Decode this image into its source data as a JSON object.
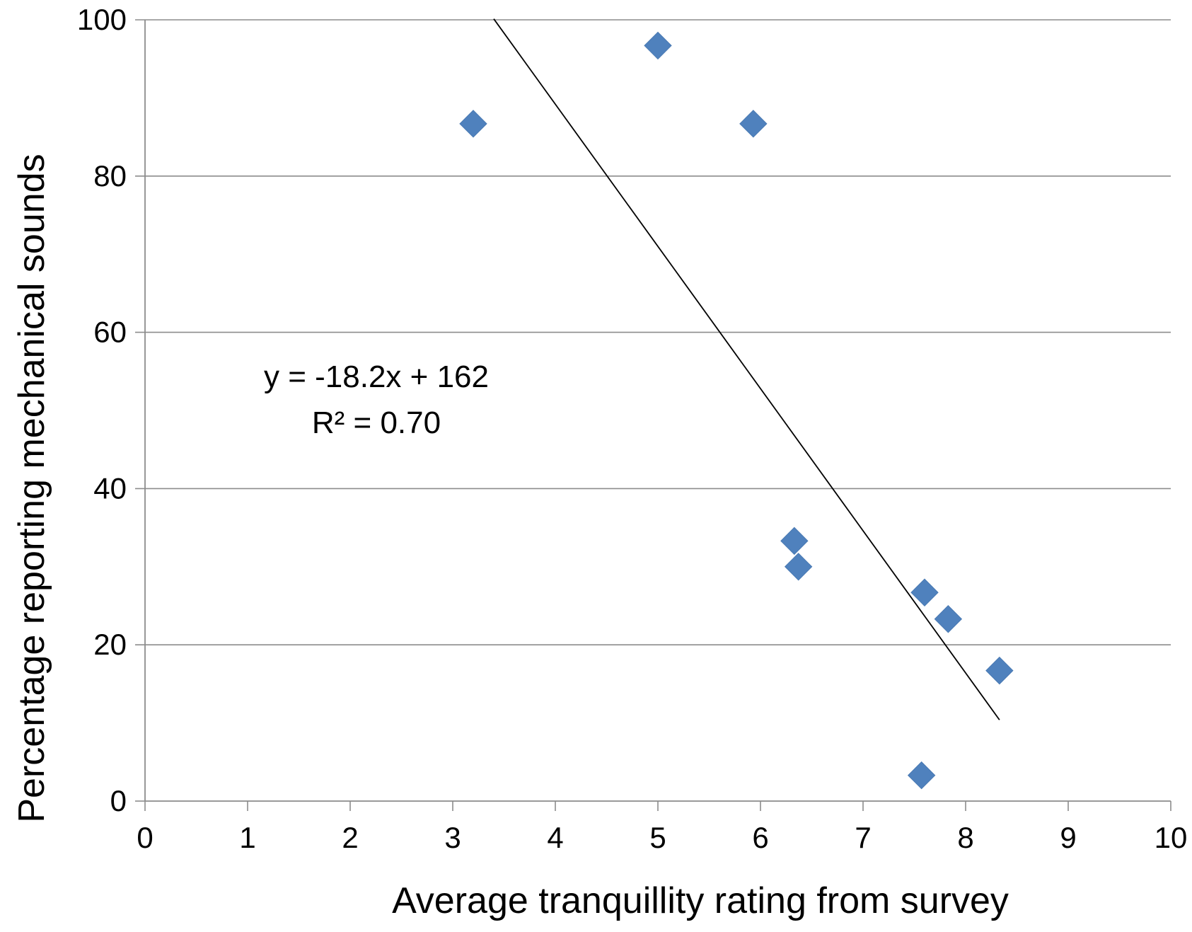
{
  "chart_data": {
    "type": "scatter",
    "title": "",
    "xlabel": "Average tranquillity rating from survey",
    "ylabel": "Percentage reporting  mechanical sounds",
    "xlim": [
      0,
      10
    ],
    "ylim": [
      0,
      100
    ],
    "xticks": [
      "0",
      "1",
      "2",
      "3",
      "4",
      "5",
      "6",
      "7",
      "8",
      "9",
      "10"
    ],
    "yticks": [
      "0",
      "20",
      "40",
      "60",
      "80",
      "100"
    ],
    "grid": "horizontal",
    "legend": "none",
    "marker": "diamond",
    "marker_color": "#4f81bd",
    "series": [
      {
        "points": [
          {
            "x": 3.2,
            "y": 86.7
          },
          {
            "x": 5.0,
            "y": 96.7
          },
          {
            "x": 5.93,
            "y": 86.7
          },
          {
            "x": 6.33,
            "y": 33.3
          },
          {
            "x": 6.37,
            "y": 30.0
          },
          {
            "x": 7.6,
            "y": 26.7
          },
          {
            "x": 7.83,
            "y": 23.3
          },
          {
            "x": 8.33,
            "y": 16.7
          },
          {
            "x": 7.57,
            "y": 3.3
          }
        ]
      }
    ],
    "trendline": {
      "type": "linear",
      "slope": -18.2,
      "intercept": 162,
      "x_range": [
        3.4,
        8.33
      ],
      "color": "#000000",
      "equation": "y = -18.2x + 162",
      "r_squared": "R² = 0.70"
    }
  }
}
